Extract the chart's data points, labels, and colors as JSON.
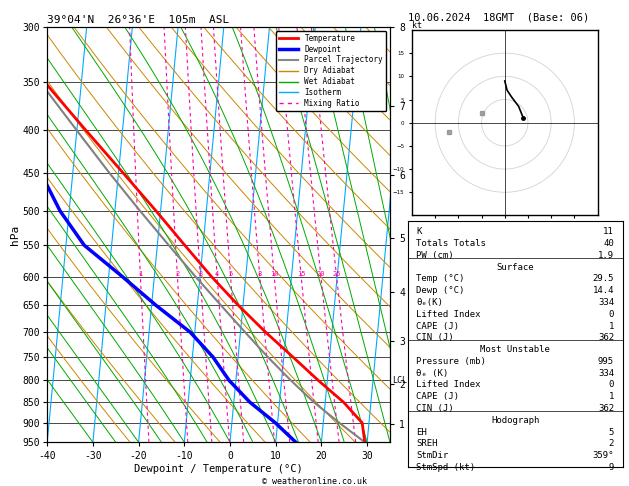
{
  "title_left": "39°04'N  26°36'E  105m  ASL",
  "title_right": "10.06.2024  18GMT  (Base: 06)",
  "xlabel": "Dewpoint / Temperature (°C)",
  "ylabel_left": "hPa",
  "pressure_ticks": [
    300,
    350,
    400,
    450,
    500,
    550,
    600,
    650,
    700,
    750,
    800,
    850,
    900,
    950
  ],
  "temp_xticks": [
    -40,
    -30,
    -20,
    -10,
    0,
    10,
    20,
    30
  ],
  "T_min": -40,
  "T_max": 35,
  "P_min": 300,
  "P_max": 950,
  "skew_factor": 7.5,
  "isotherm_color": "#00aaff",
  "dry_adiabat_color": "#cc8800",
  "wet_adiabat_color": "#00aa00",
  "mixing_ratio_color": "#ff00aa",
  "mixing_ratio_values": [
    1,
    2,
    3,
    4,
    5,
    8,
    10,
    15,
    20,
    25
  ],
  "temp_profile_T": [
    29.5,
    28.5,
    24.0,
    18.0,
    12.0,
    5.5,
    -1.0,
    -7.5,
    -14.0,
    -21.0,
    -29.0,
    -38.0,
    -48.0,
    -58.0
  ],
  "temp_profile_P": [
    950,
    900,
    850,
    800,
    750,
    700,
    650,
    600,
    550,
    500,
    450,
    400,
    350,
    300
  ],
  "dewp_profile_T": [
    14.4,
    9.5,
    3.5,
    -1.5,
    -5.5,
    -11.0,
    -19.0,
    -27.0,
    -36.0,
    -42.0,
    -47.0,
    -53.0,
    -58.0,
    -63.0
  ],
  "dewp_profile_P": [
    950,
    900,
    850,
    800,
    750,
    700,
    650,
    600,
    550,
    500,
    450,
    400,
    350,
    300
  ],
  "parcel_T": [
    29.5,
    23.5,
    17.5,
    12.0,
    6.5,
    1.0,
    -4.8,
    -11.0,
    -17.5,
    -24.5,
    -32.0,
    -40.0,
    -49.0,
    -58.5
  ],
  "parcel_P": [
    950,
    900,
    850,
    800,
    750,
    700,
    650,
    600,
    550,
    500,
    450,
    400,
    350,
    300
  ],
  "lcl_pressure": 800,
  "km_ticks": [
    1,
    2,
    3,
    4,
    5,
    6,
    7,
    8
  ],
  "km_pressures": [
    898,
    795,
    697,
    600,
    509,
    420,
    340,
    267
  ],
  "legend_entries": [
    "Temperature",
    "Dewpoint",
    "Parcel Trajectory",
    "Dry Adiabat",
    "Wet Adiabat",
    "Isotherm",
    "Mixing Ratio"
  ],
  "legend_colors": [
    "#ff0000",
    "#0000ff",
    "#888888",
    "#cc8800",
    "#00aa00",
    "#00aaff",
    "#ff00aa"
  ],
  "legend_styles": [
    "solid",
    "solid",
    "solid",
    "solid",
    "solid",
    "solid",
    "dotted"
  ],
  "legend_widths": [
    2,
    2.5,
    1.5,
    1,
    1,
    1,
    1
  ],
  "copyright": "© weatheronline.co.uk"
}
